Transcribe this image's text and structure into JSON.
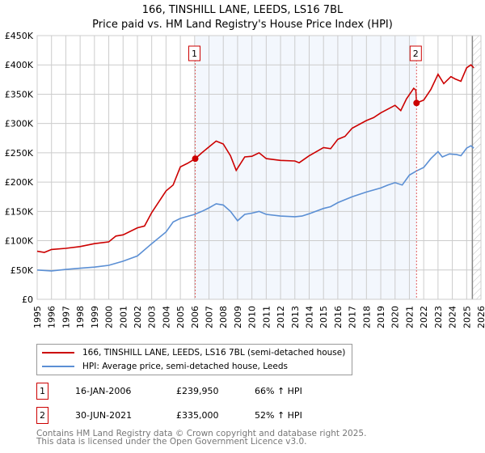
{
  "chart_data": {
    "type": "line",
    "title": "166, TINSHILL LANE, LEEDS, LS16 7BL",
    "subtitle": "Price paid vs. HM Land Registry's House Price Index (HPI)",
    "xlim": [
      1995,
      2026
    ],
    "ylim": [
      0,
      450000
    ],
    "x_ticks": [
      "1995",
      "1996",
      "1997",
      "1998",
      "1999",
      "2000",
      "2001",
      "2002",
      "2003",
      "2004",
      "2005",
      "2006",
      "2007",
      "2008",
      "2009",
      "2010",
      "2011",
      "2012",
      "2013",
      "2014",
      "2015",
      "2016",
      "2017",
      "2018",
      "2019",
      "2020",
      "2021",
      "2022",
      "2023",
      "2024",
      "2025",
      "2026"
    ],
    "y_ticks": [
      {
        "v": 0,
        "label": "£0"
      },
      {
        "v": 50000,
        "label": "£50K"
      },
      {
        "v": 100000,
        "label": "£100K"
      },
      {
        "v": 150000,
        "label": "£150K"
      },
      {
        "v": 200000,
        "label": "£200K"
      },
      {
        "v": 250000,
        "label": "£250K"
      },
      {
        "v": 300000,
        "label": "£300K"
      },
      {
        "v": 350000,
        "label": "£350K"
      },
      {
        "v": 400000,
        "label": "£400K"
      },
      {
        "v": 450000,
        "label": "£450K"
      }
    ],
    "grid": true,
    "shaded_range": [
      2006.04,
      2021.5
    ],
    "future_hatch_from": 2025.4,
    "series": [
      {
        "name": "166, TINSHILL LANE, LEEDS, LS16 7BL (semi-detached house)",
        "color": "#cc0000",
        "x": [
          1995,
          1995.5,
          1996,
          1997,
          1998,
          1999,
          2000,
          2000.5,
          2001,
          2002,
          2002.5,
          2003,
          2004,
          2004.5,
          2005,
          2005.5,
          2006.04,
          2006.5,
          2007,
          2007.5,
          2008,
          2008.5,
          2008.9,
          2009.5,
          2010,
          2010.5,
          2011,
          2012,
          2013,
          2013.3,
          2014,
          2015,
          2015.5,
          2016,
          2016.5,
          2017,
          2018,
          2018.5,
          2019,
          2020,
          2020.4,
          2020.8,
          2021.3,
          2021.45,
          2021.5,
          2022,
          2022.5,
          2023,
          2023.4,
          2023.9,
          2024.2,
          2024.6,
          2025,
          2025.3,
          2025.5
        ],
        "y": [
          82000,
          80000,
          85000,
          87000,
          90000,
          95000,
          98000,
          108000,
          110000,
          122000,
          125000,
          148000,
          185000,
          195000,
          226000,
          232000,
          239950,
          250000,
          260000,
          270000,
          265000,
          245000,
          220000,
          243000,
          244000,
          250000,
          240000,
          237000,
          236000,
          233000,
          245000,
          259000,
          257000,
          273000,
          278000,
          292000,
          305000,
          310000,
          318000,
          331000,
          322000,
          342000,
          360000,
          357000,
          335000,
          340000,
          358000,
          384000,
          368000,
          380000,
          376000,
          372000,
          395000,
          400000,
          395000
        ]
      },
      {
        "name": "HPI: Average price, semi-detached house, Leeds",
        "color": "#5b8fd4",
        "x": [
          1995,
          1996,
          1997,
          1998,
          1999,
          2000,
          2001,
          2002,
          2003,
          2004,
          2004.5,
          2005,
          2006,
          2006.5,
          2007,
          2007.5,
          2008,
          2008.5,
          2009,
          2009.5,
          2010,
          2010.5,
          2011,
          2012,
          2013,
          2013.5,
          2014,
          2015,
          2015.5,
          2016,
          2017,
          2018,
          2019,
          2019.5,
          2020,
          2020.5,
          2021,
          2021.5,
          2022,
          2022.5,
          2023,
          2023.3,
          2023.8,
          2024.3,
          2024.6,
          2025,
          2025.3,
          2025.5
        ],
        "y": [
          50000,
          48500,
          51000,
          53000,
          55000,
          58000,
          65000,
          74000,
          95000,
          115000,
          132000,
          138000,
          145000,
          150000,
          156000,
          163000,
          161000,
          150000,
          134000,
          145000,
          147000,
          150000,
          145000,
          142000,
          141000,
          142000,
          146000,
          155000,
          158000,
          165000,
          175000,
          183000,
          190000,
          195000,
          199000,
          195000,
          212000,
          219000,
          225000,
          240000,
          252000,
          243000,
          248000,
          247000,
          245000,
          258000,
          262000,
          258000
        ]
      }
    ],
    "annotations": [
      {
        "label": "1",
        "x": 2006.04,
        "y": 239950
      },
      {
        "label": "2",
        "x": 2021.5,
        "y": 335000
      }
    ]
  },
  "legend": {
    "items": [
      {
        "label": "166, TINSHILL LANE, LEEDS, LS16 7BL (semi-detached house)",
        "color": "#cc0000"
      },
      {
        "label": "HPI: Average price, semi-detached house, Leeds",
        "color": "#5b8fd4"
      }
    ]
  },
  "transactions": [
    {
      "num": "1",
      "date": "16-JAN-2006",
      "price": "£239,950",
      "hpi": "66% ↑ HPI"
    },
    {
      "num": "2",
      "date": "30-JUN-2021",
      "price": "£335,000",
      "hpi": "52% ↑ HPI"
    }
  ],
  "footer": {
    "line1": "Contains HM Land Registry data © Crown copyright and database right 2025.",
    "line2": "This data is licensed under the Open Government Licence v3.0."
  }
}
